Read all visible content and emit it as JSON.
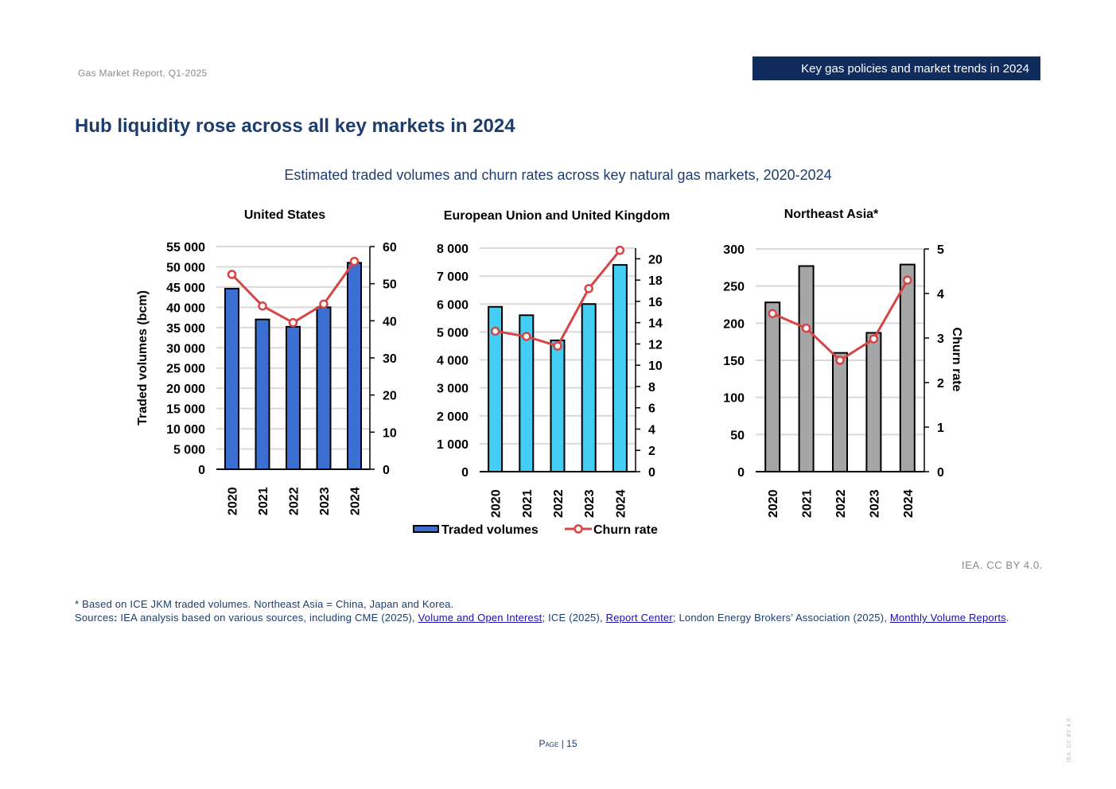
{
  "header": {
    "report_name": "Gas Market Report, Q1-2025",
    "section": "Key gas policies and market trends in 2024"
  },
  "page_title": "Hub liquidity rose across all key markets in 2024",
  "figure_title": "Estimated traded volumes and churn rates across key natural gas markets, 2020-2024",
  "legend": {
    "bars": "Traded volumes",
    "line": "Churn rate"
  },
  "colors": {
    "us_bar": "#3b6fd1",
    "eu_bar": "#44cdf5",
    "asia_bar": "#a6a6a6",
    "churn_line": "#d64545",
    "title_blue": "#1c3d6e"
  },
  "chart_data": [
    {
      "type": "bar",
      "title": "United States",
      "categories": [
        "2020",
        "2021",
        "2022",
        "2023",
        "2024"
      ],
      "series": [
        {
          "name": "Traded volumes",
          "values": [
            44600,
            37000,
            35200,
            40000,
            51000
          ]
        },
        {
          "name": "Churn rate",
          "type": "line",
          "axis": "right",
          "values": [
            52.5,
            44,
            39.5,
            44.5,
            56
          ]
        }
      ],
      "ylabel": "Traded volumes (bcm)",
      "ylim": [
        0,
        55000
      ],
      "yticks": [
        "0",
        "5 000",
        "10 000",
        "15 000",
        "20 000",
        "25 000",
        "30 000",
        "35 000",
        "40 000",
        "45 000",
        "50 000",
        "55 000"
      ],
      "y2lim": [
        0,
        60
      ],
      "y2ticks": [
        "0",
        "10",
        "20",
        "30",
        "40",
        "50",
        "60"
      ]
    },
    {
      "type": "bar",
      "title": "European Union and United Kingdom",
      "categories": [
        "2020",
        "2021",
        "2022",
        "2023",
        "2024"
      ],
      "series": [
        {
          "name": "Traded volumes",
          "values": [
            5900,
            5600,
            4700,
            6000,
            7400
          ]
        },
        {
          "name": "Churn rate",
          "type": "line",
          "axis": "right",
          "values": [
            13.2,
            12.7,
            11.8,
            17.2,
            20.8
          ]
        }
      ],
      "ylim": [
        0,
        8000
      ],
      "yticks": [
        "0",
        "1 000",
        "2 000",
        "3 000",
        "4 000",
        "5 000",
        "6 000",
        "7 000",
        "8 000"
      ],
      "y2lim": [
        0,
        21
      ],
      "y2ticks": [
        "0",
        "2",
        "4",
        "6",
        "8",
        "10",
        "12",
        "14",
        "16",
        "18",
        "20"
      ]
    },
    {
      "type": "bar",
      "title": "Northeast Asia*",
      "categories": [
        "2020",
        "2021",
        "2022",
        "2023",
        "2024"
      ],
      "series": [
        {
          "name": "Traded volumes",
          "values": [
            228,
            277,
            160,
            187,
            279
          ]
        },
        {
          "name": "Churn rate",
          "type": "line",
          "axis": "right",
          "values": [
            3.55,
            3.22,
            2.5,
            2.98,
            4.3
          ]
        }
      ],
      "ylim": [
        0,
        300
      ],
      "yticks": [
        "0",
        "50",
        "100",
        "150",
        "200",
        "250",
        "300"
      ],
      "y2label": "Churn rate",
      "y2lim": [
        0,
        5
      ],
      "y2ticks": [
        "0",
        "1",
        "2",
        "3",
        "4",
        "5"
      ]
    }
  ],
  "attribution": "IEA. CC BY 4.0.",
  "notes": {
    "footnote": "* Based on ICE JKM traded volumes. Northeast Asia = China, Japan and Korea.",
    "sources_label": "Sources",
    "sources_colon": ":",
    "sources_intro": " IEA analysis based on various sources, including CME (2025), ",
    "link1": "Volume and Open Interest",
    "sep1": "; ICE (2025), ",
    "link2": "Report Center",
    "sep2": "; London Energy Brokers’ Association (2025), ",
    "link3": "Monthly Volume Reports",
    "end": "."
  },
  "page_number": {
    "label": "Page",
    "sep": " | ",
    "value": "15"
  },
  "side_credit": "IEA. CC BY 4.0."
}
